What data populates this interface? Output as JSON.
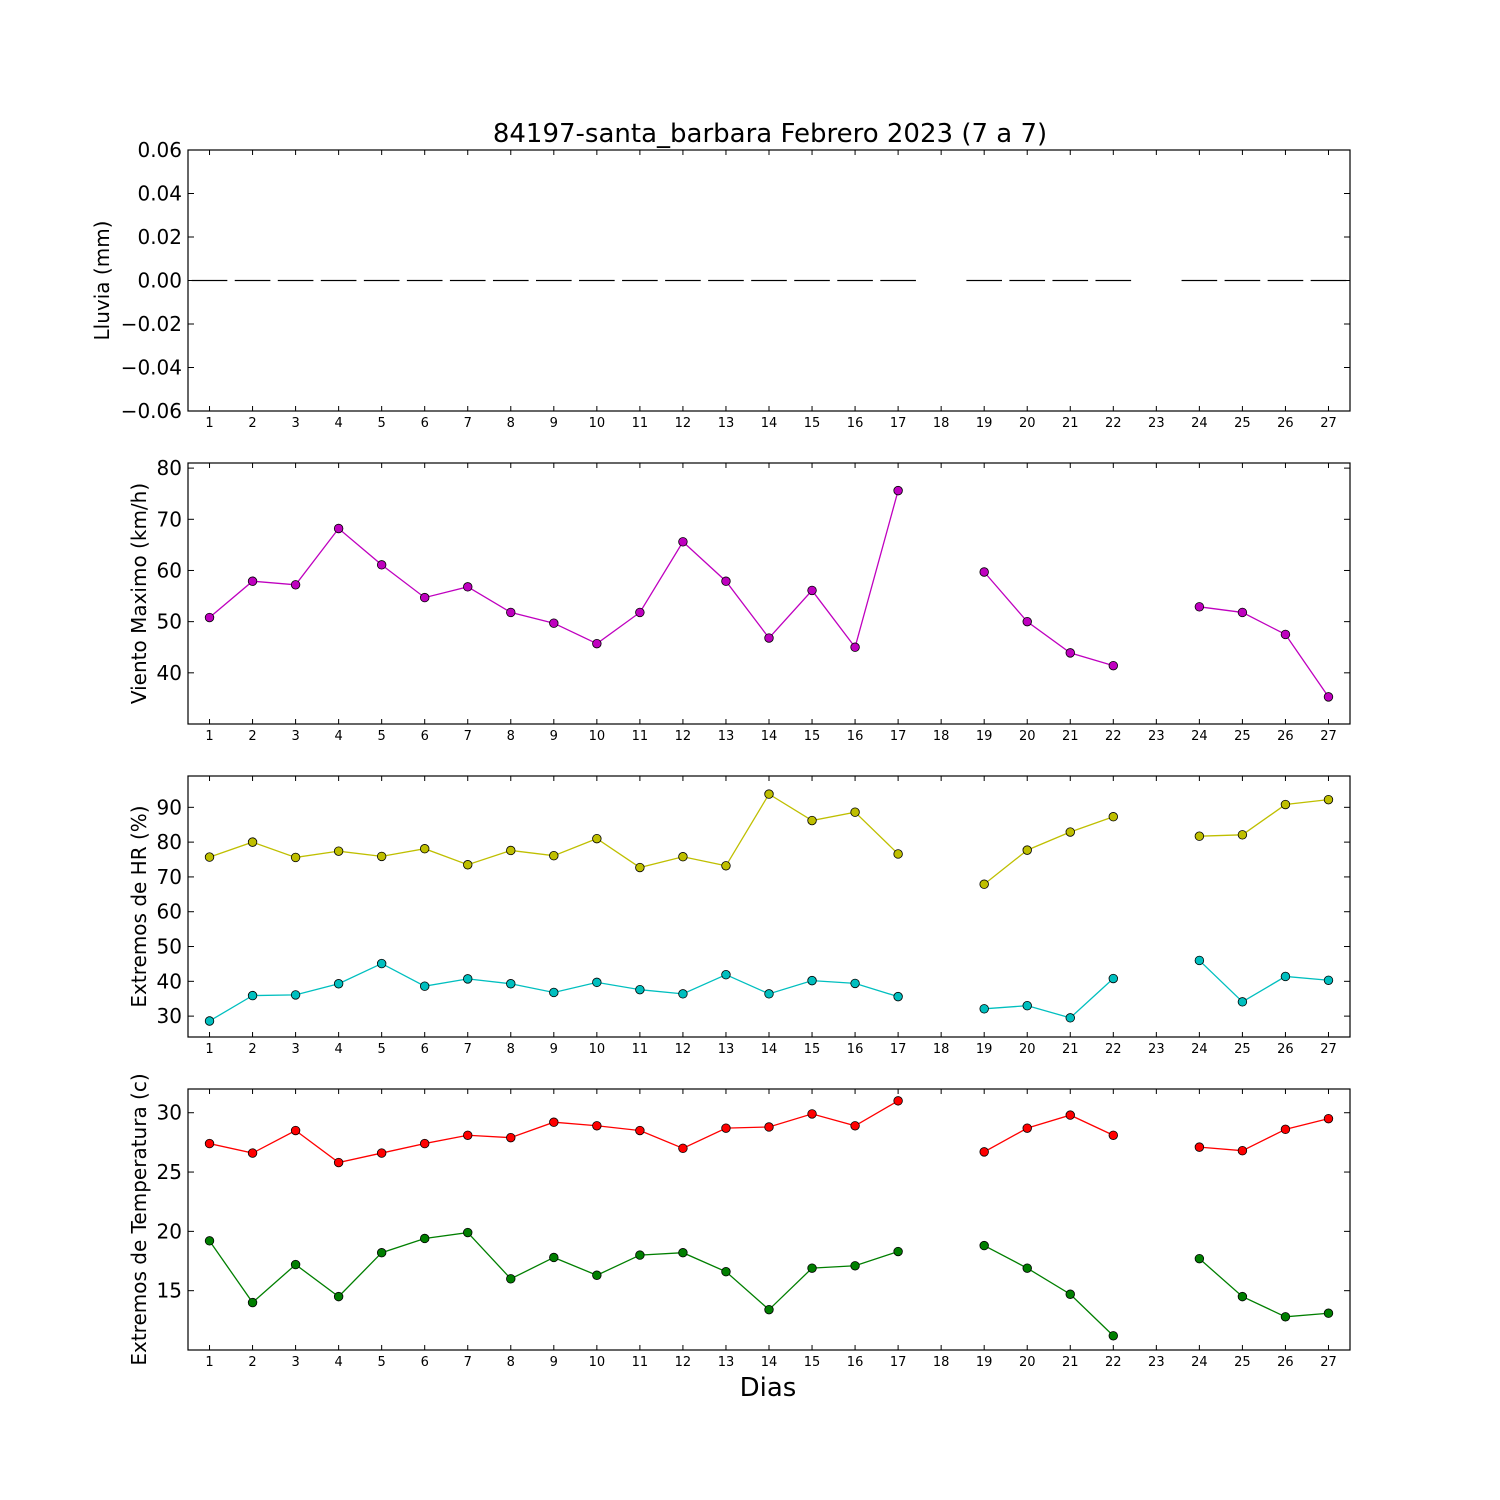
{
  "title": "84197-santa_barbara Febrero 2023  (7 a 7)",
  "xlabel": "Dias",
  "chart_data": [
    {
      "type": "bar",
      "ylabel": "Lluvia (mm)",
      "ylim": [
        -0.06,
        0.06
      ],
      "yticks": [
        0.06,
        0.04,
        0.02,
        0.0,
        -0.02,
        -0.04,
        -0.06
      ],
      "ytick_labels": [
        "0.06",
        "0.04",
        "0.02",
        "0.00",
        "−0.02",
        "−0.04",
        "−0.06"
      ],
      "x": [
        1,
        2,
        3,
        4,
        5,
        6,
        7,
        8,
        9,
        10,
        11,
        12,
        13,
        14,
        15,
        16,
        17,
        19,
        20,
        21,
        22,
        24,
        25,
        26,
        27
      ],
      "series": [
        {
          "values": [
            0,
            0,
            0,
            0,
            0,
            0,
            0,
            0,
            0,
            0,
            0,
            0,
            0,
            0,
            0,
            0,
            0,
            0,
            0,
            0,
            0,
            0,
            0,
            0,
            0
          ],
          "color": "#000000"
        }
      ]
    },
    {
      "type": "line",
      "ylabel": "Viento Maximo (km/h)",
      "ylim": [
        30,
        81
      ],
      "yticks": [
        40,
        50,
        60,
        70,
        80
      ],
      "ytick_labels": [
        "40",
        "50",
        "60",
        "70",
        "80"
      ],
      "series": [
        {
          "color": "#bf00bf",
          "x": [
            1,
            2,
            3,
            4,
            5,
            6,
            7,
            8,
            9,
            10,
            11,
            12,
            13,
            14,
            15,
            16,
            17,
            19,
            20,
            21,
            22,
            24,
            25,
            26,
            27
          ],
          "values": [
            50.8,
            57.9,
            57.2,
            68.2,
            61.1,
            54.7,
            56.8,
            51.8,
            49.7,
            45.7,
            51.8,
            65.6,
            57.9,
            46.8,
            56.1,
            45.0,
            75.6,
            59.7,
            50.0,
            43.9,
            41.4,
            52.9,
            51.8,
            47.5,
            35.3
          ],
          "segments": [
            [
              1,
              17
            ],
            [
              19,
              22
            ],
            [
              24,
              27
            ]
          ]
        }
      ]
    },
    {
      "type": "line",
      "ylabel": "Extremos de HR (%)",
      "ylim": [
        24,
        99
      ],
      "yticks": [
        30,
        40,
        50,
        60,
        70,
        80,
        90
      ],
      "ytick_labels": [
        "30",
        "40",
        "50",
        "60",
        "70",
        "80",
        "90"
      ],
      "series": [
        {
          "color": "#bfbf00",
          "x": [
            1,
            2,
            3,
            4,
            5,
            6,
            7,
            8,
            9,
            10,
            11,
            12,
            13,
            14,
            15,
            16,
            17,
            19,
            20,
            21,
            22,
            24,
            25,
            26,
            27
          ],
          "values": [
            75.7,
            80.0,
            75.6,
            77.4,
            75.9,
            78.1,
            73.5,
            77.6,
            76.1,
            81.0,
            72.7,
            75.8,
            73.2,
            93.8,
            86.2,
            88.6,
            76.6,
            67.9,
            77.7,
            82.9,
            87.3,
            81.7,
            82.1,
            90.8,
            92.2
          ],
          "segments": [
            [
              1,
              17
            ],
            [
              19,
              22
            ],
            [
              24,
              27
            ]
          ]
        },
        {
          "color": "#00bfbf",
          "x": [
            1,
            2,
            3,
            4,
            5,
            6,
            7,
            8,
            9,
            10,
            11,
            12,
            13,
            14,
            15,
            16,
            17,
            19,
            20,
            21,
            22,
            24,
            25,
            26,
            27
          ],
          "values": [
            28.6,
            35.9,
            36.1,
            39.3,
            45.1,
            38.6,
            40.7,
            39.3,
            36.8,
            39.7,
            37.6,
            36.4,
            41.9,
            36.4,
            40.2,
            39.4,
            35.6,
            32.1,
            33.0,
            29.5,
            40.8,
            46.0,
            34.1,
            41.4,
            40.3
          ],
          "segments": [
            [
              1,
              17
            ],
            [
              19,
              22
            ],
            [
              24,
              27
            ]
          ]
        }
      ]
    },
    {
      "type": "line",
      "ylabel": "Extremos de Temperatura (c)",
      "ylim": [
        10,
        32
      ],
      "yticks": [
        15,
        20,
        25,
        30
      ],
      "ytick_labels": [
        "15",
        "20",
        "25",
        "30"
      ],
      "series": [
        {
          "color": "#ff0000",
          "x": [
            1,
            2,
            3,
            4,
            5,
            6,
            7,
            8,
            9,
            10,
            11,
            12,
            13,
            14,
            15,
            16,
            17,
            19,
            20,
            21,
            22,
            24,
            25,
            26,
            27
          ],
          "values": [
            27.4,
            26.6,
            28.5,
            25.8,
            26.6,
            27.4,
            28.1,
            27.9,
            29.2,
            28.9,
            28.5,
            27.0,
            28.7,
            28.8,
            29.9,
            28.9,
            31.0,
            26.7,
            28.7,
            29.8,
            28.1,
            27.1,
            26.8,
            28.6,
            29.5
          ],
          "segments": [
            [
              1,
              17
            ],
            [
              19,
              22
            ],
            [
              24,
              27
            ]
          ]
        },
        {
          "color": "#007f00",
          "x": [
            1,
            2,
            3,
            4,
            5,
            6,
            7,
            8,
            9,
            10,
            11,
            12,
            13,
            14,
            15,
            16,
            17,
            19,
            20,
            21,
            22,
            24,
            25,
            26,
            27
          ],
          "values": [
            19.2,
            14.0,
            17.2,
            14.5,
            18.2,
            19.4,
            19.9,
            16.0,
            17.8,
            16.3,
            18.0,
            18.2,
            16.6,
            13.4,
            16.9,
            17.1,
            18.3,
            18.8,
            16.9,
            14.7,
            11.2,
            17.7,
            14.5,
            12.8,
            13.1
          ],
          "segments": [
            [
              1,
              17
            ],
            [
              19,
              22
            ],
            [
              24,
              27
            ]
          ]
        }
      ]
    }
  ],
  "x_ticks": [
    "1",
    "2",
    "3",
    "4",
    "5",
    "6",
    "7",
    "8",
    "9",
    "10",
    "11",
    "12",
    "13",
    "14",
    "15",
    "16",
    "17",
    "18",
    "19",
    "20",
    "21",
    "22",
    "23",
    "24",
    "25",
    "26",
    "27"
  ]
}
